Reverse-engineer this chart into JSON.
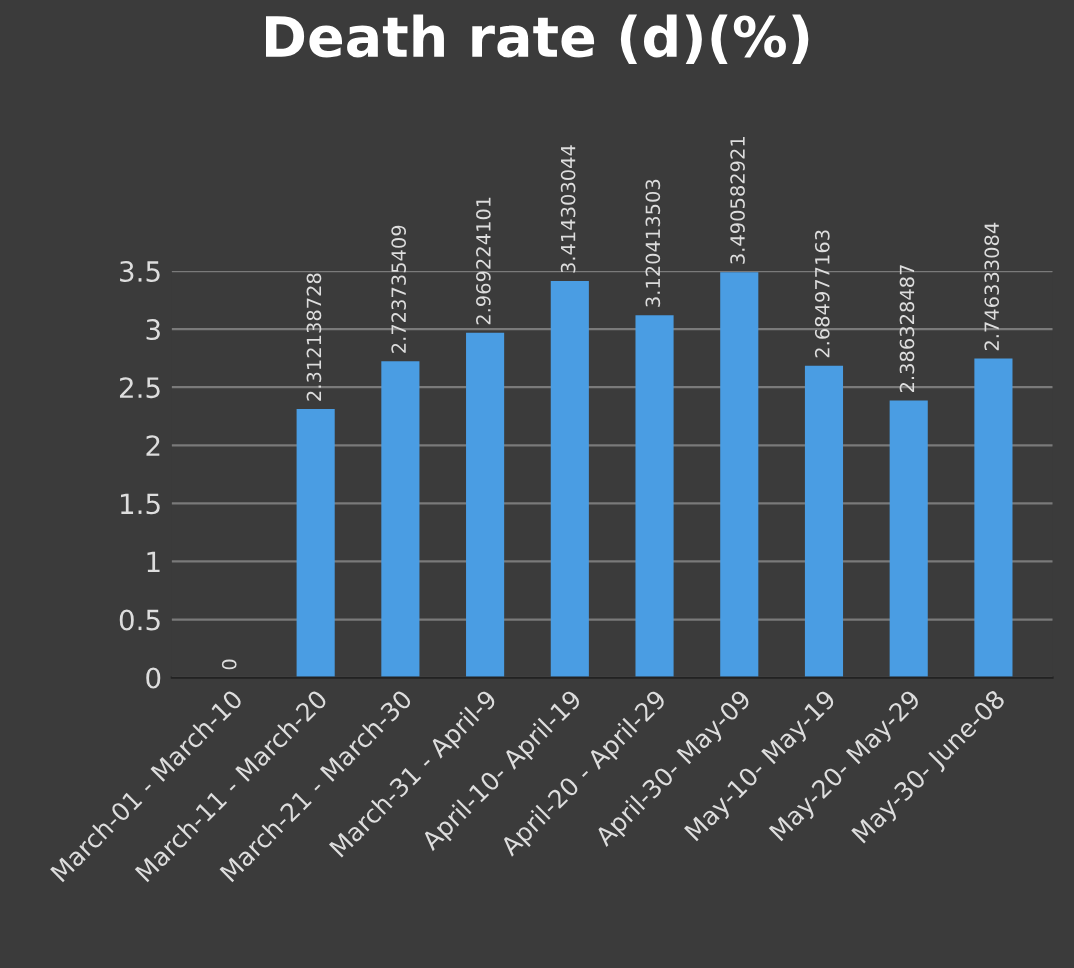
{
  "chart_data": {
    "type": "bar",
    "title": "Death rate (d)(%)",
    "categories": [
      "March-01 - March-10",
      "March-11 - March-20",
      "March-21 - March-30",
      "March-31 - April-9",
      "April-10- April-19",
      "April-20 - April-29",
      "April-30- May-09",
      "May-10- May-19",
      "May-20- May-29",
      "May-30- June-08"
    ],
    "values": [
      0,
      2.312138728,
      2.723735409,
      2.969224101,
      3.414303044,
      3.120413503,
      3.490582921,
      2.684977163,
      2.386328487,
      2.746333084
    ],
    "value_labels": [
      "0",
      "2.312138728",
      "2.723735409",
      "2.969224101",
      "3.414303044",
      "3.120413503",
      "3.490582921",
      "2.684977163",
      "2.386328487",
      "2.746333084"
    ],
    "color": "#4a9de3",
    "ylim": [
      0,
      3.5
    ],
    "yticks": [
      0,
      0.5,
      1,
      1.5,
      2,
      2.5,
      3,
      3.5
    ],
    "grid": "y",
    "legend": false
  }
}
